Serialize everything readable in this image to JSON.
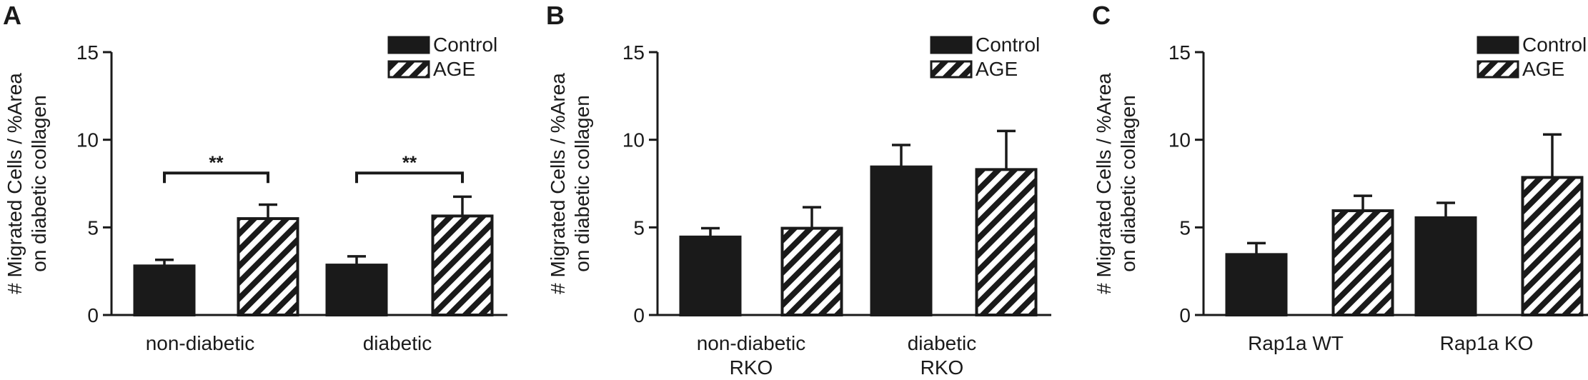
{
  "chart_data": [
    {
      "panel": "A",
      "type": "bar",
      "categories": [
        [
          "non-diabetic"
        ],
        [
          "diabetic"
        ]
      ],
      "series": [
        {
          "name": "Control",
          "pattern": "solid",
          "values": [
            2.8,
            2.85
          ],
          "errors": [
            0.35,
            0.5
          ]
        },
        {
          "name": "AGE",
          "pattern": "hatched",
          "values": [
            5.5,
            5.65
          ],
          "errors": [
            0.8,
            1.1
          ]
        }
      ],
      "ylabel": [
        "# Migrated Cells / %Area",
        "on diabetic collagen"
      ],
      "ylim": [
        0,
        15
      ],
      "yticks": [
        0,
        5,
        10,
        15
      ],
      "significance": [
        {
          "category_index": 0,
          "label": "**",
          "y": 8.1
        },
        {
          "category_index": 1,
          "label": "**",
          "y": 8.1
        }
      ],
      "legend_position": "top-right"
    },
    {
      "panel": "B",
      "type": "bar",
      "categories": [
        [
          "non-diabetic",
          "RKO"
        ],
        [
          "diabetic",
          "RKO"
        ]
      ],
      "series": [
        {
          "name": "Control",
          "pattern": "solid",
          "values": [
            4.45,
            8.45
          ],
          "errors": [
            0.5,
            1.25
          ]
        },
        {
          "name": "AGE",
          "pattern": "hatched",
          "values": [
            4.95,
            8.3
          ],
          "errors": [
            1.2,
            2.2
          ]
        }
      ],
      "ylabel": [
        "# Migrated Cells / %Area",
        "on diabetic collagen"
      ],
      "ylim": [
        0,
        15
      ],
      "yticks": [
        0,
        5,
        10,
        15
      ],
      "significance": [],
      "legend_position": "top-right"
    },
    {
      "panel": "C",
      "type": "bar",
      "categories": [
        [
          "Rap1a WT"
        ],
        [
          "Rap1a KO"
        ]
      ],
      "series": [
        {
          "name": "Control",
          "pattern": "solid",
          "values": [
            3.45,
            5.55
          ],
          "errors": [
            0.65,
            0.85
          ]
        },
        {
          "name": "AGE",
          "pattern": "hatched",
          "values": [
            5.95,
            7.85
          ],
          "errors": [
            0.85,
            2.45
          ]
        }
      ],
      "ylabel": [
        "# Migrated Cells / %Area",
        "on diabetic collagen"
      ],
      "ylim": [
        0,
        15
      ],
      "yticks": [
        0,
        5,
        10,
        15
      ],
      "significance": [],
      "legend_position": "top-right"
    }
  ]
}
